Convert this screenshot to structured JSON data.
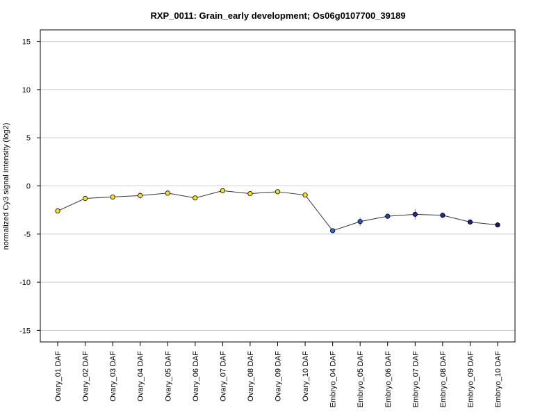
{
  "chart_data": {
    "type": "line",
    "title": "RXP_0011: Grain_early development; Os06g0107700_39189",
    "xlabel": "",
    "ylabel": "normalized Cy3 signal intensity (log2)",
    "ylim": [
      -16.2,
      16.2
    ],
    "yticks": [
      15,
      10,
      5,
      0,
      -5,
      -10,
      -15
    ],
    "grid": true,
    "categories": [
      "Ovary_01 DAF",
      "Ovary_02 DAF",
      "Ovary_03 DAF",
      "Ovary_04 DAF",
      "Ovary_05 DAF",
      "Ovary_06 DAF",
      "Ovary_07 DAF",
      "Ovary_08 DAF",
      "Ovary_09 DAF",
      "Ovary_10 DAF",
      "Embryo_04 DAF",
      "Embryo_05 DAF",
      "Embryo_06 DAF",
      "Embryo_07 DAF",
      "Embryo_08 DAF",
      "Embryo_09 DAF",
      "Embryo_10 DAF"
    ],
    "values": [
      -2.6,
      -1.3,
      -1.15,
      -1.0,
      -0.75,
      -1.25,
      -0.5,
      -0.8,
      -0.6,
      -0.95,
      -4.65,
      -3.7,
      -3.15,
      -2.95,
      -3.05,
      -3.75,
      -4.05
    ],
    "errors": [
      0.1,
      0.1,
      0.1,
      0.35,
      0.1,
      0.1,
      0.1,
      0.1,
      0.1,
      0.1,
      0.1,
      0.45,
      0.1,
      0.55,
      0.1,
      0.1,
      0.1
    ],
    "point_colors": [
      "#ffe000",
      "#ffe000",
      "#ffe000",
      "#ffe000",
      "#ffe000",
      "#ffe000",
      "#ffe000",
      "#ffe000",
      "#ffe000",
      "#ffe000",
      "#2a6fd6",
      "#2656c4",
      "#2148b0",
      "#1a2fa0",
      "#1b2a98",
      "#151f8a",
      "#101880"
    ],
    "line_color": "#333333",
    "error_color": "#6a8fd8",
    "grid_color": "#cccccc"
  }
}
